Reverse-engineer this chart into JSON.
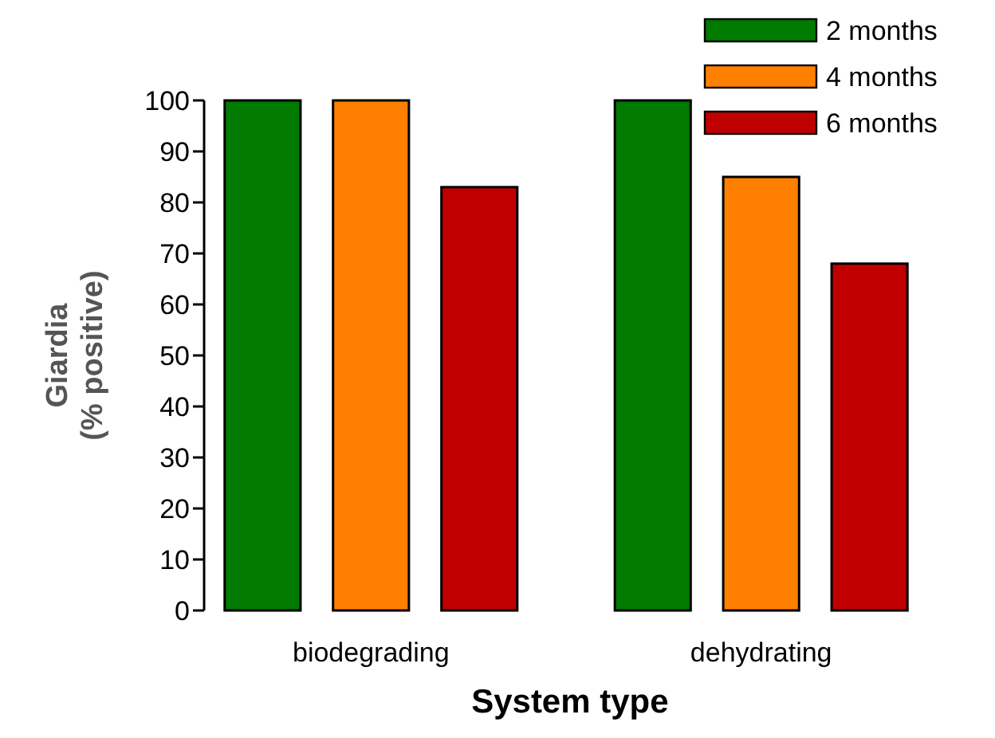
{
  "chart_data": {
    "type": "bar",
    "xlabel": "System type",
    "ylabel": "Giardia\n(% positive)",
    "categories": [
      "biodegrading",
      "dehydrating"
    ],
    "series": [
      {
        "name": "2 months",
        "color": "#007a00",
        "values": [
          100,
          100
        ]
      },
      {
        "name": "4 months",
        "color": "#ff8000",
        "values": [
          100,
          85
        ]
      },
      {
        "name": "6 months",
        "color": "#c00000",
        "values": [
          83,
          68
        ]
      }
    ],
    "ylim": [
      0,
      100
    ],
    "yticks": [
      0,
      10,
      20,
      30,
      40,
      50,
      60,
      70,
      80,
      90,
      100
    ],
    "legend": "top right",
    "grid": false
  }
}
